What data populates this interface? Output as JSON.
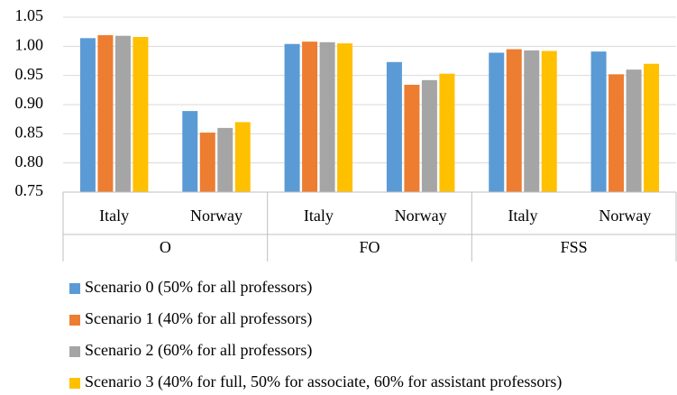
{
  "chart_data": {
    "type": "bar",
    "categories": [
      "Italy",
      "Norway",
      "Italy",
      "Norway",
      "Italy",
      "Norway"
    ],
    "groups": [
      "O",
      "FO",
      "FSS"
    ],
    "series": [
      {
        "name": "Scenario 0 (50% for all professors)",
        "color": "#5b9bd5",
        "values": [
          1.014,
          0.889,
          1.004,
          0.973,
          0.989,
          0.991
        ]
      },
      {
        "name": "Scenario 1 (40% for all professors)",
        "color": "#ed7d31",
        "values": [
          1.019,
          0.852,
          1.008,
          0.934,
          0.995,
          0.952
        ]
      },
      {
        "name": "Scenario 2 (60% for all professors)",
        "color": "#a5a5a5",
        "values": [
          1.018,
          0.86,
          1.007,
          0.942,
          0.993,
          0.96
        ]
      },
      {
        "name": "Scenario 3 (40% for full, 50% for associate, 60% for assistant professors)",
        "color": "#ffc000",
        "values": [
          1.016,
          0.87,
          1.005,
          0.953,
          0.992,
          0.97
        ]
      }
    ],
    "ylim": [
      0.75,
      1.05
    ],
    "yticks": [
      0.75,
      {
        "value": 0.8,
        "label": "0.80"
      },
      0.85,
      {
        "value": 0.9,
        "label": "0.90"
      },
      0.95,
      {
        "value": 1,
        "label": "1.00"
      },
      1.05
    ],
    "grid": true
  }
}
